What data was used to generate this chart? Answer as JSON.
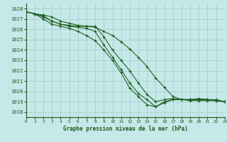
{
  "xlabel": "Graphe pression niveau de la mer (hPa)",
  "ylim": [
    1017.5,
    1028.5
  ],
  "xlim": [
    0,
    23
  ],
  "yticks": [
    1018,
    1019,
    1020,
    1021,
    1022,
    1023,
    1024,
    1025,
    1026,
    1027,
    1028
  ],
  "xticks": [
    0,
    1,
    2,
    3,
    4,
    5,
    6,
    7,
    8,
    9,
    10,
    11,
    12,
    13,
    14,
    15,
    16,
    17,
    18,
    19,
    20,
    21,
    22,
    23
  ],
  "background_color": "#c5e8e8",
  "grid_color": "#a8d0d0",
  "line_color": "#1a5c1a",
  "series": [
    [
      1027.7,
      1027.5,
      1027.4,
      1027.2,
      1026.8,
      1026.6,
      1026.4,
      1026.3,
      1026.2,
      1025.8,
      1025.4,
      1024.8,
      1024.1,
      1023.3,
      1022.4,
      1021.3,
      1020.4,
      1019.5,
      1019.2,
      1019.1,
      1019.1,
      1019.1,
      1019.1,
      1019.0
    ],
    [
      1027.7,
      1027.5,
      1027.2,
      1026.8,
      1026.5,
      1026.4,
      1026.3,
      1026.3,
      1026.3,
      1025.3,
      1024.0,
      1023.0,
      1022.0,
      1020.8,
      1019.7,
      1019.0,
      1019.2,
      1019.3,
      1019.2,
      1019.2,
      1019.2,
      1019.2,
      1019.2,
      1019.0
    ],
    [
      1027.7,
      1027.5,
      1027.3,
      1026.8,
      1026.5,
      1026.3,
      1026.2,
      1026.1,
      1025.8,
      1024.5,
      1023.3,
      1022.1,
      1020.8,
      1019.8,
      1019.2,
      1018.5,
      1018.9,
      1019.2,
      1019.2,
      1019.2,
      1019.3,
      1019.2,
      1019.1,
      1019.0
    ],
    [
      1027.7,
      1027.5,
      1027.0,
      1026.5,
      1026.3,
      1026.1,
      1025.8,
      1025.4,
      1024.9,
      1024.0,
      1023.0,
      1021.8,
      1020.3,
      1019.5,
      1018.7,
      1018.5,
      1019.0,
      1019.2,
      1019.2,
      1019.2,
      1019.2,
      1019.2,
      1019.1,
      1019.0
    ]
  ]
}
